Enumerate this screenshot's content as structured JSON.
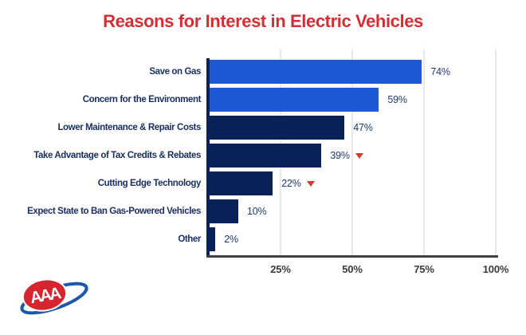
{
  "title": {
    "text": "Reasons for Interest in Electric Vehicles",
    "color": "#d42e35"
  },
  "chart_data": {
    "type": "bar",
    "orientation": "horizontal",
    "title": "Reasons for Interest in Electric Vehicles",
    "categories": [
      "Save on Gas",
      "Concern for the Environment",
      "Lower Maintenance & Repair Costs",
      "Take Advantage of Tax Credits & Rebates",
      "Cutting Edge Technology",
      "Expect State to Ban Gas-Powered Vehicles",
      "Other"
    ],
    "values": [
      74,
      59,
      47,
      39,
      22,
      10,
      2
    ],
    "value_labels": [
      "74%",
      "59%",
      "47%",
      "39%",
      "22%",
      "10%",
      "2%"
    ],
    "decrease_markers": [
      false,
      false,
      false,
      true,
      true,
      false,
      false
    ],
    "bar_colors": [
      "#1d58d6",
      "#1d58d6",
      "#0a2158",
      "#0a2158",
      "#0a2158",
      "#0a2158",
      "#0a2158"
    ],
    "x_ticks": [
      "25%",
      "50%",
      "75%",
      "100%"
    ],
    "x_tick_values": [
      25,
      50,
      75,
      100
    ],
    "xlim": [
      0,
      100
    ],
    "grid": true,
    "legend": "none",
    "colors": {
      "bright_blue": "#1d58d6",
      "navy": "#0a2158",
      "category_label": "#1b2f63",
      "value_label": "#1e3a6e",
      "title_red": "#d42e35",
      "decrease_red": "#d63a2f",
      "gridline": "#e8e8e8",
      "baseline": "#404040",
      "tick_label": "#3a3a3a"
    }
  },
  "logo": {
    "text": "AAA",
    "oval_red": "#d6252e",
    "swoosh_blue": "#1c59a8"
  },
  "icons": {
    "decrease": "triangle-down"
  }
}
